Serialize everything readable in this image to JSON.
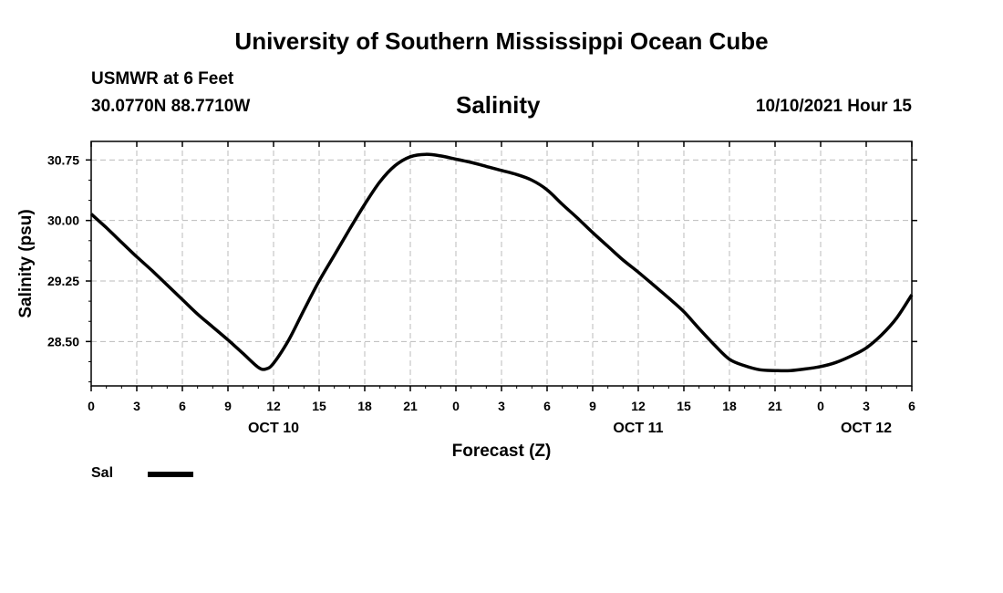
{
  "header": {
    "title": "University of Southern Mississippi Ocean Cube",
    "station_name": "USMWR at 6 Feet",
    "coordinates": "30.0770N  88.7710W",
    "issued": "10/10/2021 Hour 15"
  },
  "footer": {
    "title": "University of Southern Mississippi Ocean Cube"
  },
  "chart_data": {
    "type": "line",
    "title": "Salinity",
    "xlabel": "Forecast (Z)",
    "ylabel": "Salinity (psu)",
    "x_unit": "forecast hour",
    "xlim": [
      0,
      54
    ],
    "ylim": [
      27.95,
      30.98
    ],
    "x_ticks": [
      {
        "x": 0,
        "label": "0"
      },
      {
        "x": 3,
        "label": "3"
      },
      {
        "x": 6,
        "label": "6"
      },
      {
        "x": 9,
        "label": "9"
      },
      {
        "x": 12,
        "label": "12"
      },
      {
        "x": 15,
        "label": "15"
      },
      {
        "x": 18,
        "label": "18"
      },
      {
        "x": 21,
        "label": "21"
      },
      {
        "x": 24,
        "label": "0"
      },
      {
        "x": 27,
        "label": "3"
      },
      {
        "x": 30,
        "label": "6"
      },
      {
        "x": 33,
        "label": "9"
      },
      {
        "x": 36,
        "label": "12"
      },
      {
        "x": 39,
        "label": "15"
      },
      {
        "x": 42,
        "label": "18"
      },
      {
        "x": 45,
        "label": "21"
      },
      {
        "x": 48,
        "label": "0"
      },
      {
        "x": 51,
        "label": "3"
      },
      {
        "x": 54,
        "label": "6"
      }
    ],
    "date_labels": [
      {
        "x": 12,
        "label": "OCT 10"
      },
      {
        "x": 36,
        "label": "OCT 11"
      },
      {
        "x": 51,
        "label": "OCT 12"
      }
    ],
    "y_ticks": [
      {
        "y": 28.5,
        "label": "28.50"
      },
      {
        "y": 29.25,
        "label": "29.25"
      },
      {
        "y": 30.0,
        "label": "30.00"
      },
      {
        "y": 30.75,
        "label": "30.75"
      }
    ],
    "grid": true,
    "legend": {
      "position": "bottom-left",
      "entries": [
        {
          "label": "Sal",
          "color": "#000000"
        }
      ]
    },
    "series": [
      {
        "name": "Sal",
        "color": "#000000",
        "points": [
          [
            0,
            30.08
          ],
          [
            1,
            29.91
          ],
          [
            2,
            29.73
          ],
          [
            3,
            29.55
          ],
          [
            4,
            29.38
          ],
          [
            5,
            29.2
          ],
          [
            6,
            29.02
          ],
          [
            7,
            28.84
          ],
          [
            8,
            28.68
          ],
          [
            9,
            28.52
          ],
          [
            10,
            28.35
          ],
          [
            11,
            28.18
          ],
          [
            11.5,
            28.16
          ],
          [
            12,
            28.23
          ],
          [
            13,
            28.52
          ],
          [
            14,
            28.89
          ],
          [
            15,
            29.25
          ],
          [
            16,
            29.57
          ],
          [
            17,
            29.89
          ],
          [
            18,
            30.2
          ],
          [
            19,
            30.48
          ],
          [
            20,
            30.68
          ],
          [
            21,
            30.79
          ],
          [
            22,
            30.82
          ],
          [
            23,
            30.8
          ],
          [
            24,
            30.76
          ],
          [
            25,
            30.72
          ],
          [
            26,
            30.67
          ],
          [
            27,
            30.62
          ],
          [
            28,
            30.57
          ],
          [
            29,
            30.5
          ],
          [
            30,
            30.38
          ],
          [
            31,
            30.2
          ],
          [
            32,
            30.03
          ],
          [
            33,
            29.85
          ],
          [
            34,
            29.68
          ],
          [
            35,
            29.51
          ],
          [
            36,
            29.36
          ],
          [
            37,
            29.2
          ],
          [
            38,
            29.04
          ],
          [
            39,
            28.87
          ],
          [
            40,
            28.66
          ],
          [
            41,
            28.46
          ],
          [
            42,
            28.28
          ],
          [
            43,
            28.2
          ],
          [
            44,
            28.15
          ],
          [
            45,
            28.14
          ],
          [
            46,
            28.14
          ],
          [
            47,
            28.16
          ],
          [
            48,
            28.19
          ],
          [
            49,
            28.24
          ],
          [
            50,
            28.32
          ],
          [
            51,
            28.42
          ],
          [
            52,
            28.58
          ],
          [
            53,
            28.79
          ],
          [
            54,
            29.08
          ]
        ]
      }
    ]
  }
}
